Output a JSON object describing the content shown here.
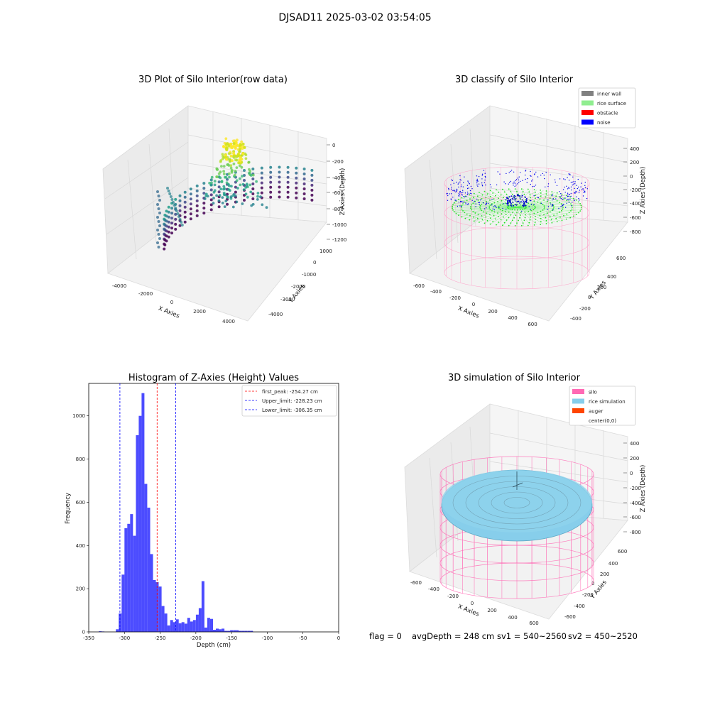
{
  "suptitle": "DJSAD11 2025-03-02 03:54:05",
  "footer": {
    "flag": "flag = 0",
    "avg": "avgDepth = 248 cm",
    "sv1": "sv1 = 540~2560",
    "sv2": "sv2 = 450~2520"
  },
  "chart_data": [
    {
      "type": "scatter",
      "title": "3D Plot of Silo Interior(row data)",
      "xlabel": "X Axies",
      "ylabel": "Y Axies",
      "zlabel": "Z Axies (Depth)",
      "x_ticks": [
        "-4000",
        "-2000",
        "0",
        "2000",
        "4000"
      ],
      "y_ticks": [
        "1000",
        "0",
        "-1000",
        "-2000",
        "-3000",
        "-4000"
      ],
      "z_ticks": [
        "0",
        "-200",
        "-400",
        "-600",
        "-800",
        "-1000",
        "-1200"
      ],
      "colormap": "viridis"
    },
    {
      "type": "scatter",
      "title": "3D classify of Silo Interior",
      "xlabel": "X Axies",
      "ylabel": "Y Axies",
      "zlabel": "Z Axies (Depth)",
      "x_ticks": [
        "-600",
        "-400",
        "-200",
        "0",
        "200",
        "400",
        "600"
      ],
      "y_ticks": [
        "600",
        "400",
        "200",
        "0",
        "-200",
        "-400",
        "-600"
      ],
      "z_ticks": [
        "400",
        "200",
        "0",
        "-200",
        "-400",
        "-600",
        "-800"
      ],
      "legend": [
        {
          "label": "inner wall",
          "color": "#808080"
        },
        {
          "label": "rice surface",
          "color": "#90ee90"
        },
        {
          "label": "obstacle",
          "color": "#ff0000"
        },
        {
          "label": "noise",
          "color": "#0000ff"
        }
      ],
      "legend_position": "top-right"
    },
    {
      "type": "bar",
      "title": "Histogram of Z-Axies (Height) Values",
      "xlabel": "Depth (cm)",
      "ylabel": "Frequency",
      "xlim": [
        -350,
        0
      ],
      "ylim": [
        0,
        1150
      ],
      "x_ticks": [
        "-350",
        "-300",
        "-250",
        "-200",
        "-150",
        "-100",
        "-50",
        "0"
      ],
      "y_ticks": [
        "0",
        "200",
        "400",
        "600",
        "800",
        "1000"
      ],
      "bar_color": "#0000ff",
      "bin_width": 4,
      "bins": [
        {
          "x": -336,
          "count": 3
        },
        {
          "x": -332,
          "count": 2
        },
        {
          "x": -328,
          "count": 0
        },
        {
          "x": -324,
          "count": 0
        },
        {
          "x": -320,
          "count": 0
        },
        {
          "x": -316,
          "count": 0
        },
        {
          "x": -312,
          "count": 12
        },
        {
          "x": -308,
          "count": 85
        },
        {
          "x": -304,
          "count": 265
        },
        {
          "x": -300,
          "count": 480
        },
        {
          "x": -296,
          "count": 500
        },
        {
          "x": -292,
          "count": 545
        },
        {
          "x": -288,
          "count": 445
        },
        {
          "x": -284,
          "count": 910
        },
        {
          "x": -280,
          "count": 1000
        },
        {
          "x": -276,
          "count": 1105
        },
        {
          "x": -272,
          "count": 685
        },
        {
          "x": -268,
          "count": 575
        },
        {
          "x": -264,
          "count": 360
        },
        {
          "x": -260,
          "count": 240
        },
        {
          "x": -256,
          "count": 230
        },
        {
          "x": -252,
          "count": 210
        },
        {
          "x": -248,
          "count": 120
        },
        {
          "x": -244,
          "count": 85
        },
        {
          "x": -240,
          "count": 30
        },
        {
          "x": -236,
          "count": 55
        },
        {
          "x": -232,
          "count": 45
        },
        {
          "x": -228,
          "count": 58
        },
        {
          "x": -224,
          "count": 40
        },
        {
          "x": -220,
          "count": 45
        },
        {
          "x": -216,
          "count": 38
        },
        {
          "x": -212,
          "count": 65
        },
        {
          "x": -208,
          "count": 48
        },
        {
          "x": -204,
          "count": 55
        },
        {
          "x": -200,
          "count": 80
        },
        {
          "x": -196,
          "count": 110
        },
        {
          "x": -192,
          "count": 235
        },
        {
          "x": -188,
          "count": 20
        },
        {
          "x": -184,
          "count": 65
        },
        {
          "x": -180,
          "count": 60
        },
        {
          "x": -176,
          "count": 10
        },
        {
          "x": -172,
          "count": 15
        },
        {
          "x": -168,
          "count": 12
        },
        {
          "x": -164,
          "count": 15
        },
        {
          "x": -160,
          "count": 5
        },
        {
          "x": -156,
          "count": 5
        },
        {
          "x": -152,
          "count": 8
        },
        {
          "x": -148,
          "count": 8
        },
        {
          "x": -144,
          "count": 8
        },
        {
          "x": -140,
          "count": 5
        },
        {
          "x": -136,
          "count": 5
        },
        {
          "x": -132,
          "count": 5
        },
        {
          "x": -128,
          "count": 5
        },
        {
          "x": -124,
          "count": 5
        }
      ],
      "vlines": [
        {
          "label": "first_peak: -254.27 cm",
          "x": -254.27,
          "color": "#ff0000"
        },
        {
          "label": "Upper_limit: -228.23 cm",
          "x": -228.23,
          "color": "#0000ff"
        },
        {
          "label": "Lower_limit: -306.35 cm",
          "x": -306.35,
          "color": "#0000ff"
        }
      ],
      "legend_position": "top-right"
    },
    {
      "type": "scatter",
      "title": "3D simulation of Silo Interior",
      "xlabel": "X Axies",
      "ylabel": "Y Axies",
      "zlabel": "Z Axies (Depth)",
      "x_ticks": [
        "-600",
        "-400",
        "-200",
        "0",
        "200",
        "400",
        "600"
      ],
      "y_ticks": [
        "600",
        "400",
        "200",
        "0",
        "-200",
        "-400",
        "-600"
      ],
      "z_ticks": [
        "400",
        "200",
        "0",
        "-200",
        "-400",
        "-600",
        "-800"
      ],
      "legend": [
        {
          "label": "silo",
          "color": "#ff69b4"
        },
        {
          "label": "rice simulation",
          "color": "#87ceeb"
        },
        {
          "label": "auger",
          "color": "#ff4500"
        },
        {
          "label": "center(0,0)",
          "color": ""
        }
      ],
      "legend_position": "top-right"
    }
  ]
}
